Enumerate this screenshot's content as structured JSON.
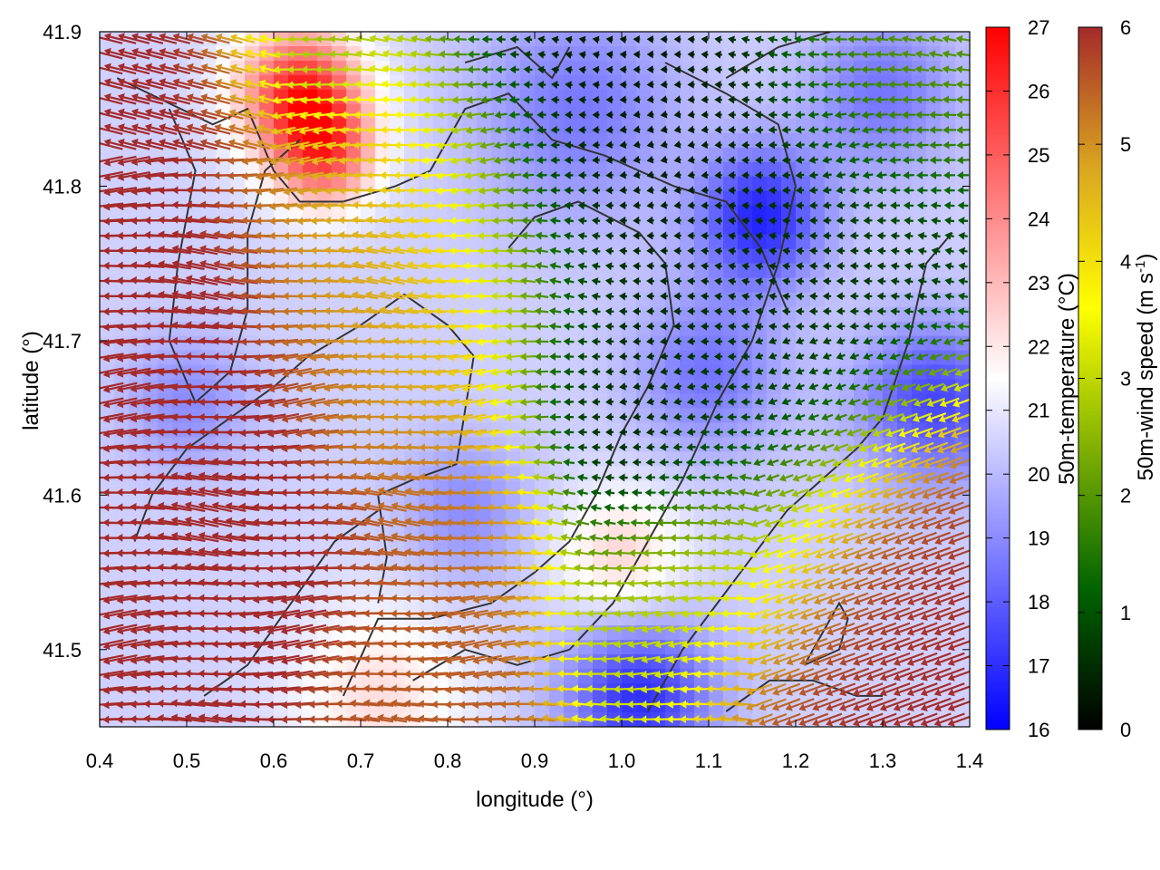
{
  "chart_data": {
    "type": "heatmap",
    "title": "",
    "xlabel": "longitude (°)",
    "ylabel": "latitude (°)",
    "xlim": [
      0.4,
      1.4
    ],
    "ylim": [
      41.45,
      41.9
    ],
    "xticks": [
      "0.4",
      "0.5",
      "0.6",
      "0.7",
      "0.8",
      "0.9",
      "1.0",
      "1.1",
      "1.2",
      "1.3",
      "1.4"
    ],
    "yticks": [
      "41.5",
      "41.6",
      "41.7",
      "41.8",
      "41.9"
    ],
    "temperature_colorbar": {
      "label": "50m-temperature (°C)",
      "range": [
        16,
        27
      ],
      "ticks": [
        "16",
        "17",
        "18",
        "19",
        "20",
        "21",
        "22",
        "23",
        "24",
        "25",
        "26",
        "27"
      ],
      "colors": [
        "#0000ff",
        "#ffffff",
        "#ff0000"
      ]
    },
    "wind_colorbar": {
      "label": "50m-wind speed (m s-1)",
      "label_main": "50m-wind speed (m s",
      "label_sup": "-1",
      "label_end": ")",
      "range": [
        0,
        6
      ],
      "ticks": [
        "0",
        "1",
        "2",
        "3",
        "4",
        "5",
        "6"
      ],
      "colors": [
        "#000000",
        "#006400",
        "#7fb000",
        "#ffff00",
        "#daa520",
        "#a52a2a"
      ]
    },
    "temperature_field": {
      "background": 20.5,
      "features": [
        {
          "lon": 0.63,
          "lat": 41.86,
          "value": 26.0,
          "spread": 0.05
        },
        {
          "lon": 0.66,
          "lat": 41.82,
          "value": 24.5,
          "spread": 0.04
        },
        {
          "lon": 1.16,
          "lat": 41.78,
          "value": 16.8,
          "spread": 0.05
        },
        {
          "lon": 1.02,
          "lat": 41.47,
          "value": 17.0,
          "spread": 0.06
        },
        {
          "lon": 1.0,
          "lat": 41.56,
          "value": 22.5,
          "spread": 0.05
        },
        {
          "lon": 0.72,
          "lat": 41.47,
          "value": 22.2,
          "spread": 0.07
        },
        {
          "lon": 1.36,
          "lat": 41.66,
          "value": 17.5,
          "spread": 0.06
        },
        {
          "lon": 0.95,
          "lat": 41.85,
          "value": 18.6,
          "spread": 0.08
        },
        {
          "lon": 0.82,
          "lat": 41.59,
          "value": 19.0,
          "spread": 0.05
        },
        {
          "lon": 1.3,
          "lat": 41.86,
          "value": 18.5,
          "spread": 0.06
        },
        {
          "lon": 0.5,
          "lat": 41.66,
          "value": 19.0,
          "spread": 0.05
        },
        {
          "lon": 1.1,
          "lat": 41.68,
          "value": 18.5,
          "spread": 0.06
        }
      ]
    },
    "wind_field": {
      "features": [
        {
          "lon": 0.45,
          "lat": 41.7,
          "speed": 6.5,
          "spread": 0.14
        },
        {
          "lon": 0.45,
          "lat": 41.55,
          "speed": 6.5,
          "spread": 0.12
        },
        {
          "lon": 0.5,
          "lat": 41.86,
          "speed": 6.0,
          "spread": 0.09
        },
        {
          "lon": 0.75,
          "lat": 41.7,
          "speed": 5.0,
          "spread": 0.1
        },
        {
          "lon": 0.7,
          "lat": 41.78,
          "speed": 4.5,
          "spread": 0.1
        },
        {
          "lon": 0.75,
          "lat": 41.48,
          "speed": 5.5,
          "spread": 0.08
        },
        {
          "lon": 0.82,
          "lat": 41.6,
          "speed": 5.5,
          "spread": 0.06
        },
        {
          "lon": 1.05,
          "lat": 41.8,
          "speed": 0.3,
          "spread": 0.16
        },
        {
          "lon": 0.98,
          "lat": 41.65,
          "speed": 0.3,
          "spread": 0.06
        },
        {
          "lon": 1.15,
          "lat": 41.7,
          "speed": 0.8,
          "spread": 0.12
        },
        {
          "lon": 1.35,
          "lat": 41.55,
          "speed": 6.0,
          "spread": 0.1
        },
        {
          "lon": 1.22,
          "lat": 41.47,
          "speed": 6.0,
          "spread": 0.07
        },
        {
          "lon": 1.1,
          "lat": 41.53,
          "speed": 3.0,
          "spread": 0.08
        },
        {
          "lon": 1.3,
          "lat": 41.88,
          "speed": 2.2,
          "spread": 0.08
        },
        {
          "lon": 0.63,
          "lat": 41.88,
          "speed": 1.5,
          "spread": 0.05
        }
      ]
    },
    "outline_curves": [
      [
        [
          0.42,
          41.87
        ],
        [
          0.53,
          41.84
        ],
        [
          0.57,
          41.85
        ],
        [
          0.6,
          41.81
        ],
        [
          0.63,
          41.79
        ],
        [
          0.68,
          41.79
        ],
        [
          0.74,
          41.8
        ],
        [
          0.78,
          41.81
        ],
        [
          0.82,
          41.85
        ],
        [
          0.87,
          41.86
        ],
        [
          0.92,
          41.83
        ],
        [
          0.98,
          41.82
        ],
        [
          1.06,
          41.8
        ],
        [
          1.12,
          41.79
        ],
        [
          1.16,
          41.76
        ],
        [
          1.19,
          41.72
        ]
      ],
      [
        [
          0.48,
          41.85
        ],
        [
          0.51,
          41.81
        ],
        [
          0.49,
          41.75
        ],
        [
          0.48,
          41.7
        ],
        [
          0.51,
          41.66
        ],
        [
          0.55,
          41.68
        ],
        [
          0.57,
          41.72
        ],
        [
          0.57,
          41.77
        ],
        [
          0.59,
          41.81
        ],
        [
          0.63,
          41.83
        ]
      ],
      [
        [
          0.44,
          41.57
        ],
        [
          0.46,
          41.6
        ],
        [
          0.5,
          41.63
        ],
        [
          0.55,
          41.65
        ],
        [
          0.6,
          41.67
        ],
        [
          0.64,
          41.69
        ],
        [
          0.7,
          41.71
        ],
        [
          0.75,
          41.73
        ],
        [
          0.8,
          41.71
        ],
        [
          0.83,
          41.69
        ],
        [
          0.81,
          41.62
        ],
        [
          0.76,
          41.61
        ],
        [
          0.72,
          41.6
        ],
        [
          0.73,
          41.56
        ],
        [
          0.72,
          41.53
        ]
      ],
      [
        [
          0.68,
          41.47
        ],
        [
          0.72,
          41.52
        ],
        [
          0.78,
          41.52
        ],
        [
          0.85,
          41.53
        ],
        [
          0.9,
          41.55
        ],
        [
          0.94,
          41.57
        ],
        [
          0.97,
          41.6
        ],
        [
          1.0,
          41.64
        ],
        [
          1.03,
          41.67
        ],
        [
          1.06,
          41.71
        ],
        [
          1.05,
          41.75
        ],
        [
          1.02,
          41.77
        ],
        [
          0.95,
          41.79
        ],
        [
          0.9,
          41.78
        ],
        [
          0.87,
          41.76
        ]
      ],
      [
        [
          0.52,
          41.47
        ],
        [
          0.57,
          41.49
        ],
        [
          0.62,
          41.53
        ],
        [
          0.67,
          41.57
        ],
        [
          0.72,
          41.59
        ]
      ],
      [
        [
          0.76,
          41.48
        ],
        [
          0.82,
          41.5
        ],
        [
          0.88,
          41.49
        ],
        [
          0.94,
          41.5
        ],
        [
          0.99,
          41.53
        ],
        [
          1.03,
          41.57
        ],
        [
          1.07,
          41.61
        ],
        [
          1.11,
          41.66
        ],
        [
          1.15,
          41.7
        ],
        [
          1.18,
          41.75
        ],
        [
          1.2,
          41.8
        ],
        [
          1.18,
          41.84
        ],
        [
          1.12,
          41.86
        ],
        [
          1.05,
          41.88
        ]
      ],
      [
        [
          1.03,
          41.46
        ],
        [
          1.07,
          41.5
        ],
        [
          1.11,
          41.53
        ],
        [
          1.15,
          41.56
        ],
        [
          1.19,
          41.59
        ],
        [
          1.23,
          41.61
        ],
        [
          1.27,
          41.63
        ],
        [
          1.3,
          41.65
        ],
        [
          1.33,
          41.7
        ],
        [
          1.35,
          41.75
        ],
        [
          1.38,
          41.77
        ]
      ],
      [
        [
          1.21,
          41.49
        ],
        [
          1.25,
          41.5
        ],
        [
          1.26,
          41.52
        ],
        [
          1.25,
          41.53
        ],
        [
          1.21,
          41.49
        ]
      ],
      [
        [
          1.12,
          41.46
        ],
        [
          1.17,
          41.48
        ],
        [
          1.22,
          41.48
        ],
        [
          1.27,
          41.47
        ],
        [
          1.3,
          41.47
        ]
      ],
      [
        [
          0.82,
          41.88
        ],
        [
          0.88,
          41.89
        ],
        [
          0.92,
          41.87
        ],
        [
          0.94,
          41.89
        ]
      ],
      [
        [
          1.12,
          41.87
        ],
        [
          1.18,
          41.89
        ],
        [
          1.24,
          41.9
        ]
      ]
    ]
  }
}
